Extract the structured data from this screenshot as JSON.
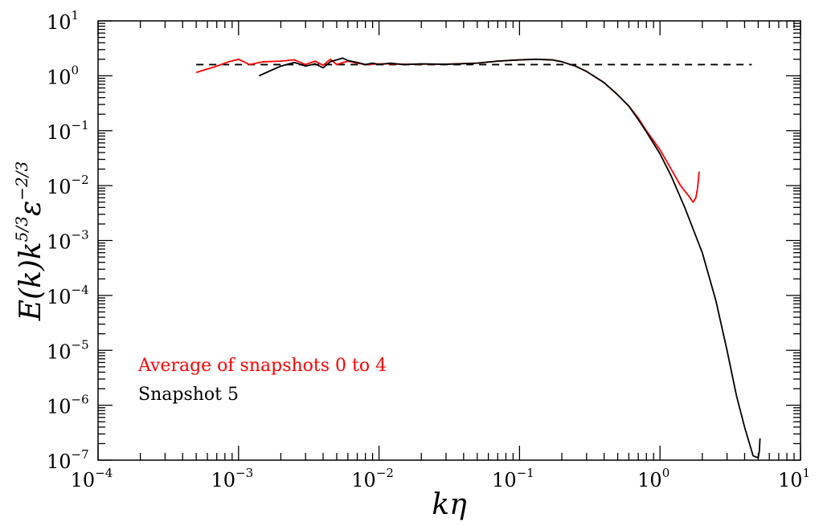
{
  "chart_data": {
    "type": "line",
    "xscale": "log",
    "yscale": "log",
    "xlim": [
      0.0001,
      10
    ],
    "ylim": [
      1e-07,
      10
    ],
    "xlabel": "kη",
    "ylabel": {
      "main": "E(k)k",
      "sup": "5/3",
      "eps": "ε",
      "eps_sup": "−2/3"
    },
    "x_ticks": [
      {
        "base": "10",
        "exp": "−4"
      },
      {
        "base": "10",
        "exp": "−3"
      },
      {
        "base": "10",
        "exp": "−2"
      },
      {
        "base": "10",
        "exp": "−1"
      },
      {
        "base": "10",
        "exp": "0"
      },
      {
        "base": "10",
        "exp": "1"
      }
    ],
    "y_ticks": [
      {
        "base": "10",
        "exp": "−7"
      },
      {
        "base": "10",
        "exp": "−6"
      },
      {
        "base": "10",
        "exp": "−5"
      },
      {
        "base": "10",
        "exp": "−4"
      },
      {
        "base": "10",
        "exp": "−3"
      },
      {
        "base": "10",
        "exp": "−2"
      },
      {
        "base": "10",
        "exp": "−1"
      },
      {
        "base": "10",
        "exp": "0"
      },
      {
        "base": "10",
        "exp": "1"
      }
    ],
    "reference_line": {
      "y": 1.6,
      "x": [
        0.0005,
        4.5
      ],
      "style": "dashed",
      "color": "#000000"
    },
    "legend": {
      "placement": "lower-left",
      "entries": [
        {
          "label": "Average of snapshots 0 to 4",
          "color": "#ff0000"
        },
        {
          "label": "Snapshot 5",
          "color": "#000000"
        }
      ]
    },
    "series": [
      {
        "color": "#ff0000",
        "points": [
          [
            0.0005,
            1.15
          ],
          [
            0.0007,
            1.5
          ],
          [
            0.00085,
            1.8
          ],
          [
            0.001,
            2.0
          ],
          [
            0.0012,
            1.6
          ],
          [
            0.0015,
            1.8
          ],
          [
            0.002,
            1.85
          ],
          [
            0.0025,
            1.95
          ],
          [
            0.003,
            1.6
          ],
          [
            0.0035,
            1.85
          ],
          [
            0.004,
            1.55
          ],
          [
            0.0045,
            2.0
          ],
          [
            0.005,
            1.6
          ],
          [
            0.006,
            1.85
          ],
          [
            0.007,
            1.7
          ],
          [
            0.008,
            1.6
          ],
          [
            0.01,
            1.65
          ],
          [
            0.012,
            1.65
          ],
          [
            0.015,
            1.62
          ],
          [
            0.02,
            1.63
          ],
          [
            0.03,
            1.63
          ],
          [
            0.05,
            1.7
          ],
          [
            0.07,
            1.85
          ],
          [
            0.1,
            1.95
          ],
          [
            0.13,
            2.0
          ],
          [
            0.17,
            1.95
          ],
          [
            0.2,
            1.8
          ],
          [
            0.25,
            1.5
          ],
          [
            0.3,
            1.2
          ],
          [
            0.4,
            0.75
          ],
          [
            0.5,
            0.45
          ],
          [
            0.6,
            0.28
          ],
          [
            0.7,
            0.17
          ],
          [
            0.8,
            0.1
          ],
          [
            1.0,
            0.045
          ],
          [
            1.2,
            0.02
          ],
          [
            1.4,
            0.01
          ],
          [
            1.6,
            0.0065
          ],
          [
            1.72,
            0.005
          ],
          [
            1.8,
            0.006
          ],
          [
            1.85,
            0.009
          ],
          [
            1.9,
            0.018
          ]
        ]
      },
      {
        "color": "#000000",
        "points": [
          [
            0.0014,
            1.0
          ],
          [
            0.0017,
            1.25
          ],
          [
            0.002,
            1.5
          ],
          [
            0.0025,
            1.75
          ],
          [
            0.003,
            1.5
          ],
          [
            0.0035,
            1.65
          ],
          [
            0.004,
            1.4
          ],
          [
            0.0045,
            1.8
          ],
          [
            0.0055,
            2.1
          ],
          [
            0.006,
            1.9
          ],
          [
            0.007,
            1.75
          ],
          [
            0.008,
            1.6
          ],
          [
            0.009,
            1.7
          ],
          [
            0.01,
            1.6
          ],
          [
            0.012,
            1.7
          ],
          [
            0.015,
            1.6
          ],
          [
            0.02,
            1.65
          ],
          [
            0.03,
            1.62
          ],
          [
            0.05,
            1.7
          ],
          [
            0.07,
            1.85
          ],
          [
            0.1,
            1.95
          ],
          [
            0.13,
            2.0
          ],
          [
            0.17,
            1.95
          ],
          [
            0.2,
            1.8
          ],
          [
            0.25,
            1.5
          ],
          [
            0.3,
            1.2
          ],
          [
            0.4,
            0.75
          ],
          [
            0.5,
            0.45
          ],
          [
            0.6,
            0.28
          ],
          [
            0.7,
            0.16
          ],
          [
            0.8,
            0.095
          ],
          [
            1.0,
            0.038
          ],
          [
            1.2,
            0.015
          ],
          [
            1.5,
            0.004
          ],
          [
            2.0,
            0.0006
          ],
          [
            2.5,
            8e-05
          ],
          [
            3.0,
            1e-05
          ],
          [
            3.5,
            1.5e-06
          ],
          [
            4.0,
            4e-07
          ],
          [
            4.6,
            1.2e-07
          ],
          [
            5.0,
            1.1e-07
          ],
          [
            5.1,
            1.5e-07
          ],
          [
            5.15,
            2.5e-07
          ]
        ]
      }
    ]
  }
}
